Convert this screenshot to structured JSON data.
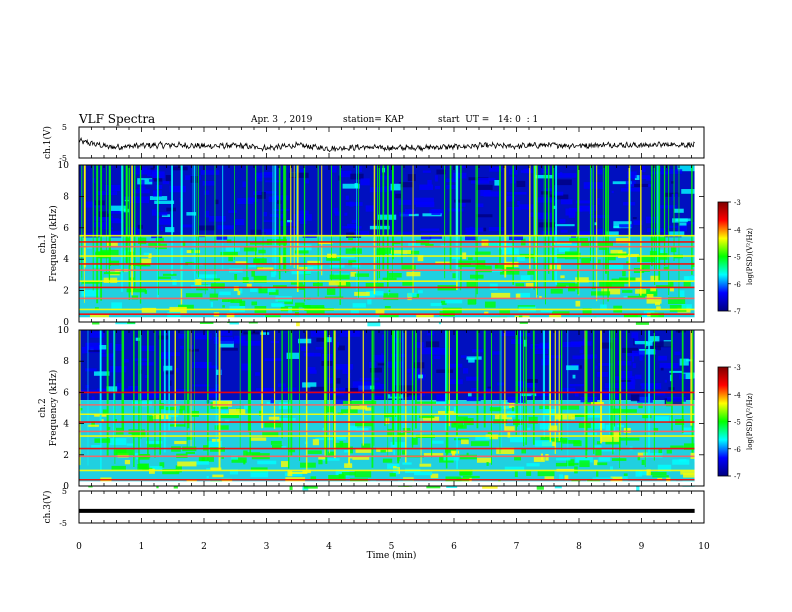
{
  "header": {
    "title": "VLF Spectra",
    "date": "Apr. 3  , 2019",
    "station": "station= KAP",
    "start": "start  UT =   14: 0  : 1"
  },
  "colors": {
    "background": "#ffffff",
    "trace": "#000000",
    "colormap": [
      "#00007f",
      "#0000ff",
      "#00ffff",
      "#00ff00",
      "#ffff00",
      "#ff0000",
      "#7f0000"
    ]
  },
  "chart_data": [
    {
      "type": "line",
      "ylabel": "ch.1(V)",
      "ylim": [
        -5,
        5
      ],
      "yticks": [
        "5",
        "-5"
      ],
      "x": [
        0,
        0.5,
        1,
        1.5,
        2,
        2.5,
        3,
        3.5,
        4,
        4.5,
        5,
        5.5,
        6,
        6.5,
        7,
        7.5,
        8,
        8.5,
        9,
        9.5,
        9.85
      ],
      "values": [
        0.5,
        -1.5,
        -1.0,
        -0.8,
        -1.2,
        -1.0,
        -1.8,
        -0.9,
        -2.0,
        -1.5,
        -1.8,
        -1.6,
        -1.4,
        -1.0,
        -1.2,
        -0.8,
        -1.0,
        -0.7,
        -0.9,
        -0.6,
        -0.8
      ]
    },
    {
      "type": "heatmap",
      "ylabel": "ch.1\nFrequency (kHz)",
      "ylim": [
        0,
        10
      ],
      "yticks": [
        "0",
        "2",
        "4",
        "6",
        "8",
        "10"
      ],
      "xlim": [
        0,
        9.85
      ],
      "colorbar": {
        "label": "log(PSD)(V²/Hz)",
        "range": [
          -7,
          -3
        ],
        "ticks": [
          "-3",
          "-4",
          "-5",
          "-6",
          "-7"
        ]
      },
      "bands_khz": [
        0.5,
        0.8,
        1.5,
        2.2,
        2.6,
        3.3,
        3.7,
        4.2,
        4.8,
        5.1,
        5.5
      ]
    },
    {
      "type": "heatmap",
      "ylabel": "ch.2\nFrequency (kHz)",
      "ylim": [
        0,
        10
      ],
      "yticks": [
        "0",
        "2",
        "4",
        "6",
        "8",
        "10"
      ],
      "xlim": [
        0,
        9.85
      ],
      "colorbar": {
        "label": "log(PSD)(V²/Hz)",
        "range": [
          -7,
          -3
        ],
        "ticks": [
          "-3",
          "-4",
          "-5",
          "-6",
          "-7"
        ]
      },
      "bands_khz": [
        0.4,
        1.0,
        1.9,
        2.4,
        3.2,
        3.5,
        4.1,
        4.6,
        5.2,
        6.0
      ]
    },
    {
      "type": "line",
      "ylabel": "ch.3(V)",
      "ylim": [
        -5,
        5
      ],
      "yticks": [
        "5",
        "-5"
      ],
      "x": [
        0,
        9.85
      ],
      "values": [
        -1.2,
        -1.2
      ],
      "xlabel": "Time  (min)",
      "xlim": [
        0,
        10
      ],
      "xticks": [
        "0",
        "1",
        "2",
        "3",
        "4",
        "5",
        "6",
        "7",
        "8",
        "9",
        "10"
      ]
    }
  ]
}
